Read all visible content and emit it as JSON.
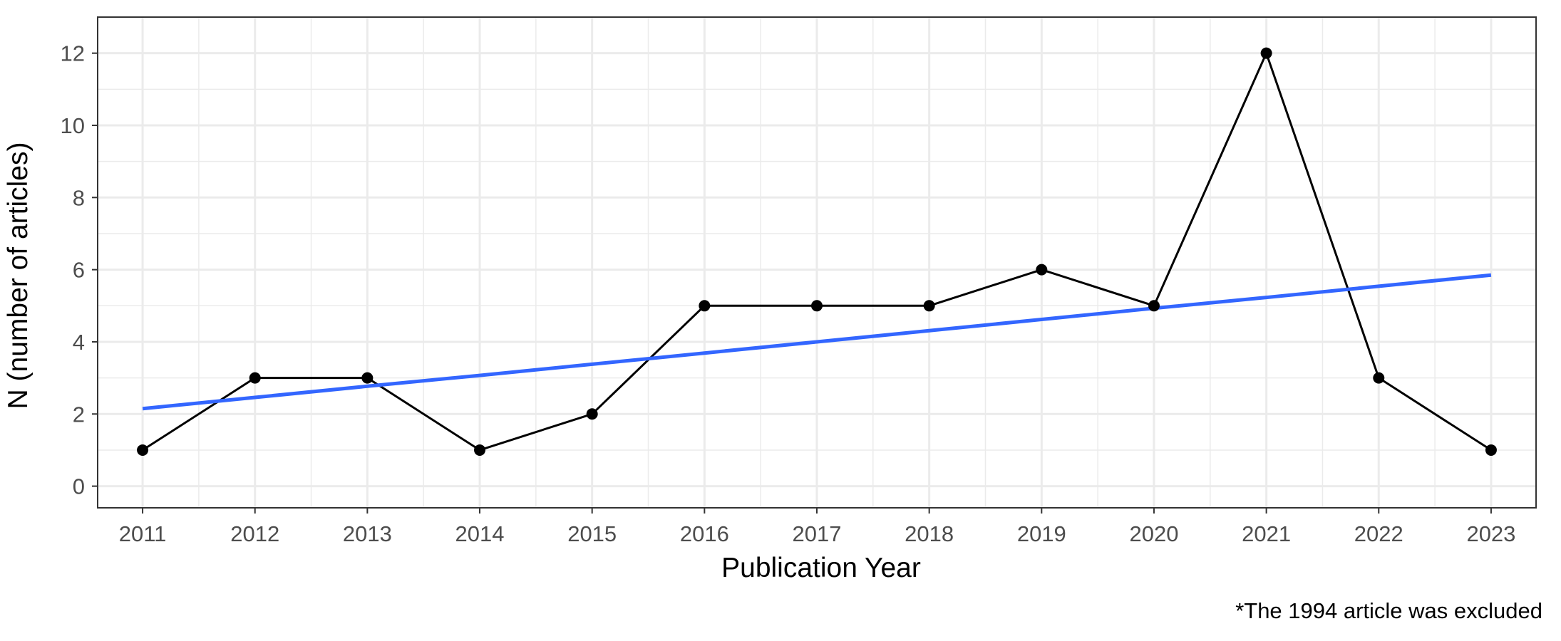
{
  "chart_data": {
    "type": "line",
    "x": [
      2011,
      2012,
      2013,
      2014,
      2015,
      2016,
      2017,
      2018,
      2019,
      2020,
      2021,
      2022,
      2023
    ],
    "series": [
      {
        "values": [
          1,
          3,
          3,
          1,
          2,
          5,
          5,
          5,
          6,
          5,
          12,
          3,
          1
        ],
        "color": "#000000",
        "markers": true
      },
      {
        "kind": "linear-trend",
        "values": [
          2.15,
          2.46,
          2.77,
          3.07,
          3.38,
          3.69,
          4.0,
          4.31,
          4.62,
          4.93,
          5.23,
          5.54,
          5.85
        ],
        "color": "#3366ff"
      }
    ],
    "xlabel": "Publication Year",
    "ylabel": "N (number of articles)",
    "xlim": [
      2010.6,
      2023.4
    ],
    "ylim": [
      -0.6,
      13.0
    ],
    "yticks": [
      0,
      2,
      4,
      6,
      8,
      10,
      12
    ],
    "xticks": [
      2011,
      2012,
      2013,
      2014,
      2015,
      2016,
      2017,
      2018,
      2019,
      2020,
      2021,
      2022,
      2023
    ],
    "grid": true,
    "caption": "*The 1994 article was excluded"
  }
}
